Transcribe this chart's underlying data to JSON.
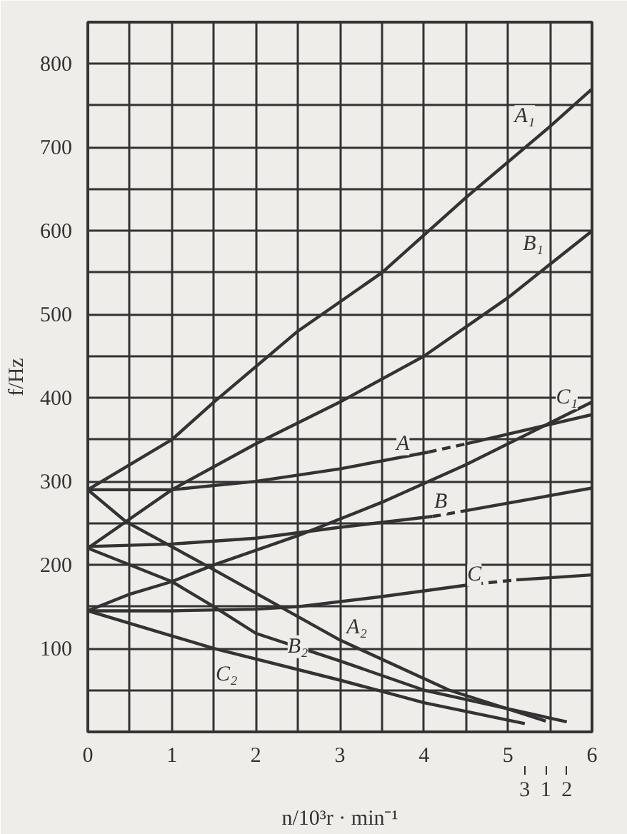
{
  "chart_data": {
    "type": "line",
    "xlabel": "n/10³r · min⁻¹",
    "ylabel": "f/Hz",
    "xlim": [
      0,
      6
    ],
    "ylim": [
      0,
      850
    ],
    "xticks": [
      0,
      {
        "value": 0.5,
        "label": null
      },
      1,
      {
        "value": 1.5,
        "label": null
      },
      2,
      {
        "value": 2.5,
        "label": null
      },
      3,
      {
        "value": 3.5,
        "label": null
      },
      4,
      {
        "value": 4.5,
        "label": null
      },
      5,
      {
        "value": 5.5,
        "label": null
      },
      6
    ],
    "yticks": [
      {
        "value": 50,
        "label": null
      },
      100,
      {
        "value": 150,
        "label": null
      },
      200,
      {
        "value": 250,
        "label": null
      },
      300,
      {
        "value": 350,
        "label": null
      },
      400,
      {
        "value": 450,
        "label": null
      },
      500,
      {
        "value": 550,
        "label": null
      },
      600,
      {
        "value": 650,
        "label": null
      },
      700,
      {
        "value": 750,
        "label": null
      },
      800
    ],
    "grid": true,
    "line_style": "solid",
    "marker": "none",
    "series": [
      {
        "color": "#333333",
        "x": [
          0,
          1,
          1.5,
          2.5,
          3.5,
          4.5,
          5.5,
          6
        ],
        "values": [
          290,
          350,
          395,
          480,
          550,
          640,
          725,
          770
        ]
      },
      {
        "color": "#333333",
        "x": [
          0,
          0.5,
          1,
          2,
          3,
          4,
          5,
          6
        ],
        "values": [
          220,
          255,
          290,
          345,
          395,
          450,
          520,
          600
        ]
      },
      {
        "color": "#333333",
        "x": [
          0,
          0.5,
          1,
          1.5,
          2.5,
          3.5,
          4.5,
          5.5,
          6
        ],
        "values": [
          145,
          165,
          180,
          200,
          235,
          275,
          320,
          370,
          395
        ]
      },
      {
        "color": "#333333",
        "x": [
          0,
          1,
          2,
          3,
          4.05
        ],
        "values": [
          290,
          290,
          300,
          315,
          335
        ]
      },
      {
        "color": "#333333",
        "x": [
          4.05,
          4.5
        ],
        "values": [
          335,
          345
        ],
        "line_style": "dashed"
      },
      {
        "color": "#333333",
        "x": [
          4.5,
          6
        ],
        "values": [
          345,
          380
        ]
      },
      {
        "color": "#333333",
        "x": [
          0,
          1,
          2,
          3,
          4.1
        ],
        "values": [
          222,
          225,
          232,
          245,
          258
        ]
      },
      {
        "color": "#333333",
        "x": [
          4.1,
          4.5
        ],
        "values": [
          258,
          265
        ],
        "line_style": "dashed"
      },
      {
        "color": "#333333",
        "x": [
          4.5,
          6
        ],
        "values": [
          265,
          292
        ]
      },
      {
        "color": "#333333",
        "x": [
          0,
          1,
          2,
          2.5,
          3.5,
          4.6
        ],
        "values": [
          145,
          145,
          147,
          150,
          162,
          177
        ]
      },
      {
        "color": "#333333",
        "x": [
          4.6,
          5.1
        ],
        "values": [
          177,
          182
        ],
        "line_style": "dashed"
      },
      {
        "color": "#333333",
        "x": [
          5.1,
          6
        ],
        "values": [
          182,
          188
        ]
      },
      {
        "color": "#333333",
        "x": [
          0,
          0.45,
          1.45,
          3,
          4.3,
          5.45
        ],
        "values": [
          290,
          252,
          197,
          110,
          50,
          13
        ]
      },
      {
        "color": "#333333",
        "x": [
          0,
          1,
          1.5,
          2,
          3,
          4,
          5.7
        ],
        "values": [
          220,
          180,
          150,
          118,
          85,
          50,
          12
        ]
      },
      {
        "color": "#333333",
        "x": [
          0,
          1,
          1.5,
          3,
          4,
          5.2
        ],
        "values": [
          145,
          115,
          100,
          62,
          35,
          10
        ]
      }
    ],
    "annotations": [
      {
        "text": "A₁",
        "x": 5.2,
        "y": 737
      },
      {
        "text": "B₁",
        "x": 5.3,
        "y": 584
      },
      {
        "text": "C₁",
        "x": 5.7,
        "y": 400
      },
      {
        "text": "A",
        "x": 3.75,
        "y": 345
      },
      {
        "text": "B",
        "x": 4.2,
        "y": 275
      },
      {
        "text": "C",
        "x": 4.6,
        "y": 188
      },
      {
        "text": "A₂",
        "x": 3.2,
        "y": 125
      },
      {
        "text": "B₂",
        "x": 2.5,
        "y": 102
      },
      {
        "text": "C₂",
        "x": 1.65,
        "y": 68
      },
      {
        "text": "3",
        "x": 5.2,
        "y": 10
      },
      {
        "text": "1",
        "x": 5.45,
        "y": 13
      },
      {
        "text": "2",
        "x": 5.7,
        "y": 12
      }
    ]
  }
}
